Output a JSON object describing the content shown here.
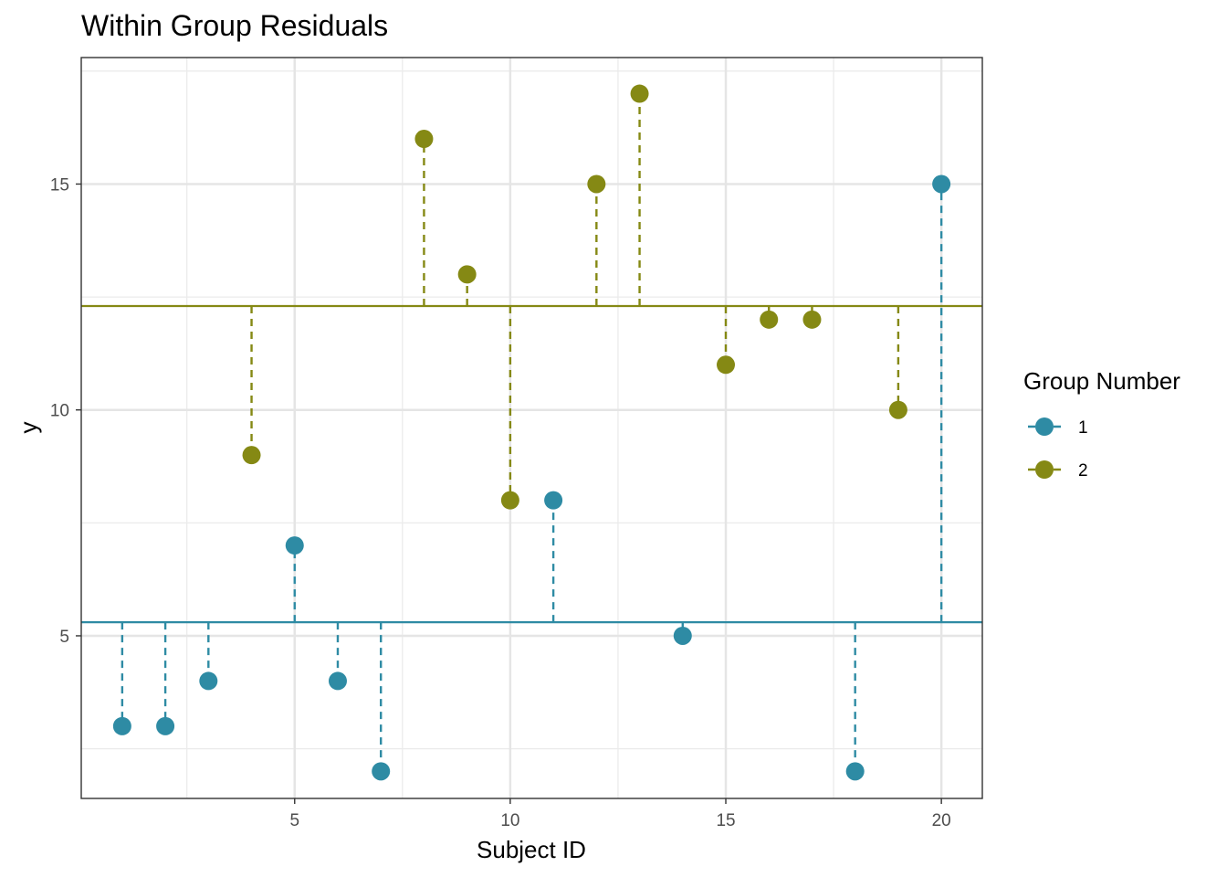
{
  "chart_data": {
    "type": "scatter",
    "title": "Within Group Residuals",
    "xlabel": "Subject ID",
    "ylabel": "y",
    "xlim": [
      0.05,
      20.95
    ],
    "ylim": [
      1.4,
      17.8
    ],
    "x_ticks": [
      5,
      10,
      15,
      20
    ],
    "y_ticks": [
      5,
      10,
      15
    ],
    "x_minor_ticks": [
      2.5,
      7.5,
      12.5,
      17.5
    ],
    "y_minor_ticks": [
      2.5,
      7.5,
      12.5,
      17.5
    ],
    "grid": true,
    "legend": {
      "title": "Group Number",
      "position": "right"
    },
    "group_means": [
      {
        "group": "1",
        "value": 5.3
      },
      {
        "group": "2",
        "value": 12.3
      }
    ],
    "series": [
      {
        "name": "1",
        "color": "#2E8BA4",
        "points": [
          {
            "x": 1,
            "y": 3
          },
          {
            "x": 2,
            "y": 3
          },
          {
            "x": 3,
            "y": 4
          },
          {
            "x": 5,
            "y": 7
          },
          {
            "x": 6,
            "y": 4
          },
          {
            "x": 7,
            "y": 2
          },
          {
            "x": 11,
            "y": 8
          },
          {
            "x": 14,
            "y": 5
          },
          {
            "x": 18,
            "y": 2
          },
          {
            "x": 20,
            "y": 15
          }
        ]
      },
      {
        "name": "2",
        "color": "#858914",
        "points": [
          {
            "x": 4,
            "y": 9
          },
          {
            "x": 8,
            "y": 16
          },
          {
            "x": 9,
            "y": 13
          },
          {
            "x": 10,
            "y": 8
          },
          {
            "x": 12,
            "y": 15
          },
          {
            "x": 13,
            "y": 17
          },
          {
            "x": 15,
            "y": 11
          },
          {
            "x": 16,
            "y": 12
          },
          {
            "x": 17,
            "y": 12
          },
          {
            "x": 19,
            "y": 10
          }
        ]
      }
    ]
  }
}
